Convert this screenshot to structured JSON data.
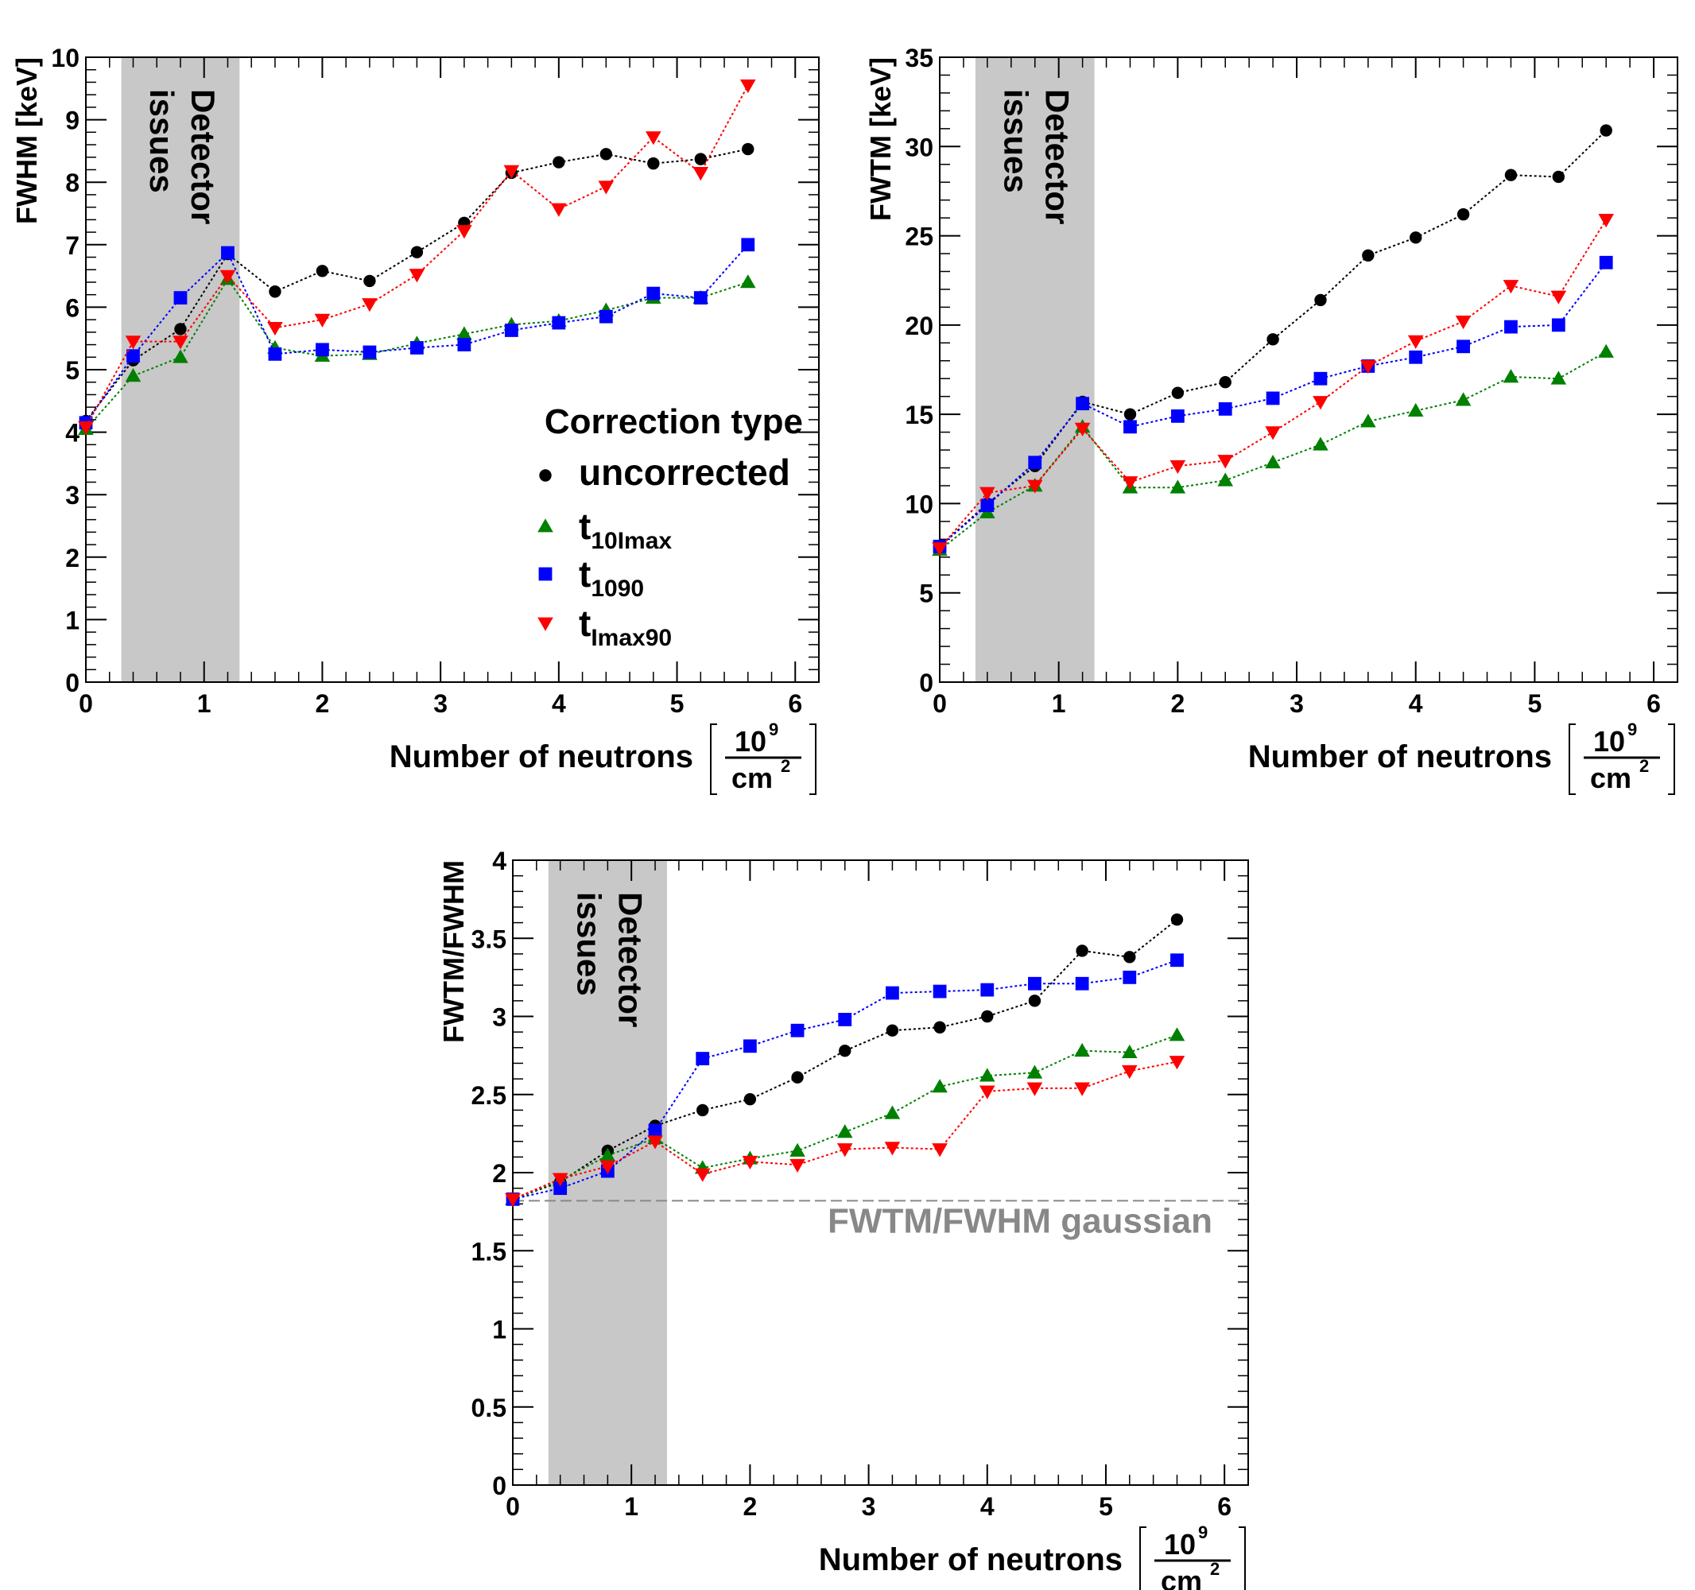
{
  "chart_data": [
    {
      "type": "line",
      "ylabel": "FWHM [keV]",
      "xlabel": "Number of neutrons",
      "xlabel_unit_num": "10",
      "xlabel_unit_num_exp": "9",
      "xlabel_unit_den": "cm",
      "xlabel_unit_den_exp": "2",
      "xlim": [
        0,
        6.2
      ],
      "ylim": [
        0,
        10
      ],
      "xticks": [
        0,
        1,
        2,
        3,
        4,
        5,
        6
      ],
      "yticks": [
        0,
        1,
        2,
        3,
        4,
        5,
        6,
        7,
        8,
        9,
        10
      ],
      "shaded_band": {
        "x": [
          0.3,
          1.3
        ],
        "label_line1": "Detector",
        "label_line2": "issues",
        "color": "#c8c8c8"
      },
      "legend": {
        "title": "Correction type",
        "placement": "center-right"
      },
      "x": [
        0,
        0.4,
        0.8,
        1.2,
        1.6,
        2.0,
        2.4,
        2.8,
        3.2,
        3.6,
        4.0,
        4.4,
        4.8,
        5.2,
        5.6
      ],
      "series": [
        {
          "name": "uncorrected",
          "name_sub": "",
          "marker": "circle",
          "color": "#000000",
          "values": [
            4.18,
            5.15,
            5.65,
            6.85,
            6.25,
            6.58,
            6.42,
            6.88,
            7.35,
            8.15,
            8.32,
            8.45,
            8.3,
            8.37,
            8.53
          ]
        },
        {
          "name": "t",
          "name_sub": "10Imax",
          "marker": "triangle-up",
          "color": "#008000",
          "values": [
            4.05,
            4.9,
            5.2,
            6.45,
            5.35,
            5.22,
            5.25,
            5.42,
            5.57,
            5.72,
            5.78,
            5.95,
            6.15,
            6.15,
            6.4
          ]
        },
        {
          "name": "t",
          "name_sub": "1090",
          "marker": "square",
          "color": "#0000ff",
          "values": [
            4.15,
            5.22,
            6.15,
            6.87,
            5.25,
            5.32,
            5.28,
            5.35,
            5.4,
            5.63,
            5.75,
            5.85,
            6.22,
            6.15,
            7.0
          ]
        },
        {
          "name": "t",
          "name_sub": "Imax90",
          "marker": "triangle-down",
          "color": "#ff0000",
          "values": [
            4.08,
            5.45,
            5.45,
            6.5,
            5.67,
            5.8,
            6.05,
            6.52,
            7.22,
            8.18,
            7.57,
            7.93,
            8.72,
            8.15,
            9.55
          ]
        }
      ]
    },
    {
      "type": "line",
      "ylabel": "FWTM [keV]",
      "xlabel": "Number of neutrons",
      "xlabel_unit_num": "10",
      "xlabel_unit_num_exp": "9",
      "xlabel_unit_den": "cm",
      "xlabel_unit_den_exp": "2",
      "xlim": [
        0,
        6.2
      ],
      "ylim": [
        0,
        35
      ],
      "xticks": [
        0,
        1,
        2,
        3,
        4,
        5,
        6
      ],
      "yticks": [
        0,
        5,
        10,
        15,
        20,
        25,
        30,
        35
      ],
      "shaded_band": {
        "x": [
          0.3,
          1.3
        ],
        "label_line1": "Detector",
        "label_line2": "issues",
        "color": "#c8c8c8"
      },
      "x": [
        0,
        0.4,
        0.8,
        1.2,
        1.6,
        2.0,
        2.4,
        2.8,
        3.2,
        3.6,
        4.0,
        4.4,
        4.8,
        5.2,
        5.6
      ],
      "series": [
        {
          "name": "uncorrected",
          "marker": "circle",
          "color": "#000000",
          "values": [
            7.6,
            10.0,
            12.1,
            15.7,
            15.0,
            16.2,
            16.8,
            19.2,
            21.4,
            23.9,
            24.9,
            26.2,
            28.4,
            28.3,
            30.9
          ]
        },
        {
          "name": "t10Imax",
          "marker": "triangle-up",
          "color": "#008000",
          "values": [
            7.4,
            9.5,
            11.0,
            14.3,
            10.9,
            10.9,
            11.3,
            12.3,
            13.3,
            14.6,
            15.2,
            15.8,
            17.1,
            17.0,
            18.5
          ]
        },
        {
          "name": "t1090",
          "marker": "square",
          "color": "#0000ff",
          "values": [
            7.6,
            9.9,
            12.3,
            15.6,
            14.3,
            14.9,
            15.3,
            15.9,
            17.0,
            17.7,
            18.2,
            18.8,
            19.9,
            20.0,
            23.5
          ]
        },
        {
          "name": "tImax90",
          "marker": "triangle-down",
          "color": "#ff0000",
          "values": [
            7.5,
            10.6,
            11.0,
            14.2,
            11.2,
            12.1,
            12.4,
            14.0,
            15.7,
            17.7,
            19.1,
            20.2,
            22.2,
            21.6,
            25.9
          ]
        }
      ]
    },
    {
      "type": "line",
      "ylabel": "FWTM/FWHM",
      "xlabel": "Number of neutrons",
      "xlabel_unit_num": "10",
      "xlabel_unit_num_exp": "9",
      "xlabel_unit_den": "cm",
      "xlabel_unit_den_exp": "2",
      "xlim": [
        0,
        6.2
      ],
      "ylim": [
        0,
        4
      ],
      "xticks": [
        0,
        1,
        2,
        3,
        4,
        5,
        6
      ],
      "yticks": [
        0,
        0.5,
        1,
        1.5,
        2,
        2.5,
        3,
        3.5,
        4
      ],
      "shaded_band": {
        "x": [
          0.3,
          1.3
        ],
        "label_line1": "Detector",
        "label_line2": "issues",
        "color": "#c8c8c8"
      },
      "reference_line": {
        "y": 1.82,
        "label": "FWTM/FWHM gaussian",
        "color": "#888888"
      },
      "x": [
        0,
        0.4,
        0.8,
        1.2,
        1.6,
        2.0,
        2.4,
        2.8,
        3.2,
        3.6,
        4.0,
        4.4,
        4.8,
        5.2,
        5.6
      ],
      "series": [
        {
          "name": "uncorrected",
          "marker": "circle",
          "color": "#000000",
          "values": [
            1.83,
            1.94,
            2.14,
            2.3,
            2.4,
            2.47,
            2.61,
            2.78,
            2.91,
            2.93,
            3.0,
            3.1,
            3.42,
            3.38,
            3.62
          ]
        },
        {
          "name": "t10Imax",
          "marker": "triangle-up",
          "color": "#008000",
          "values": [
            1.83,
            1.95,
            2.11,
            2.22,
            2.03,
            2.09,
            2.14,
            2.26,
            2.38,
            2.55,
            2.62,
            2.64,
            2.78,
            2.77,
            2.88
          ]
        },
        {
          "name": "t1090",
          "marker": "square",
          "color": "#0000ff",
          "values": [
            1.83,
            1.9,
            2.01,
            2.27,
            2.73,
            2.81,
            2.91,
            2.98,
            3.15,
            3.16,
            3.17,
            3.21,
            3.21,
            3.25,
            3.36
          ]
        },
        {
          "name": "tImax90",
          "marker": "triangle-down",
          "color": "#ff0000",
          "values": [
            1.83,
            1.96,
            2.04,
            2.2,
            1.99,
            2.07,
            2.05,
            2.15,
            2.16,
            2.15,
            2.52,
            2.54,
            2.54,
            2.65,
            2.71
          ]
        }
      ]
    }
  ]
}
